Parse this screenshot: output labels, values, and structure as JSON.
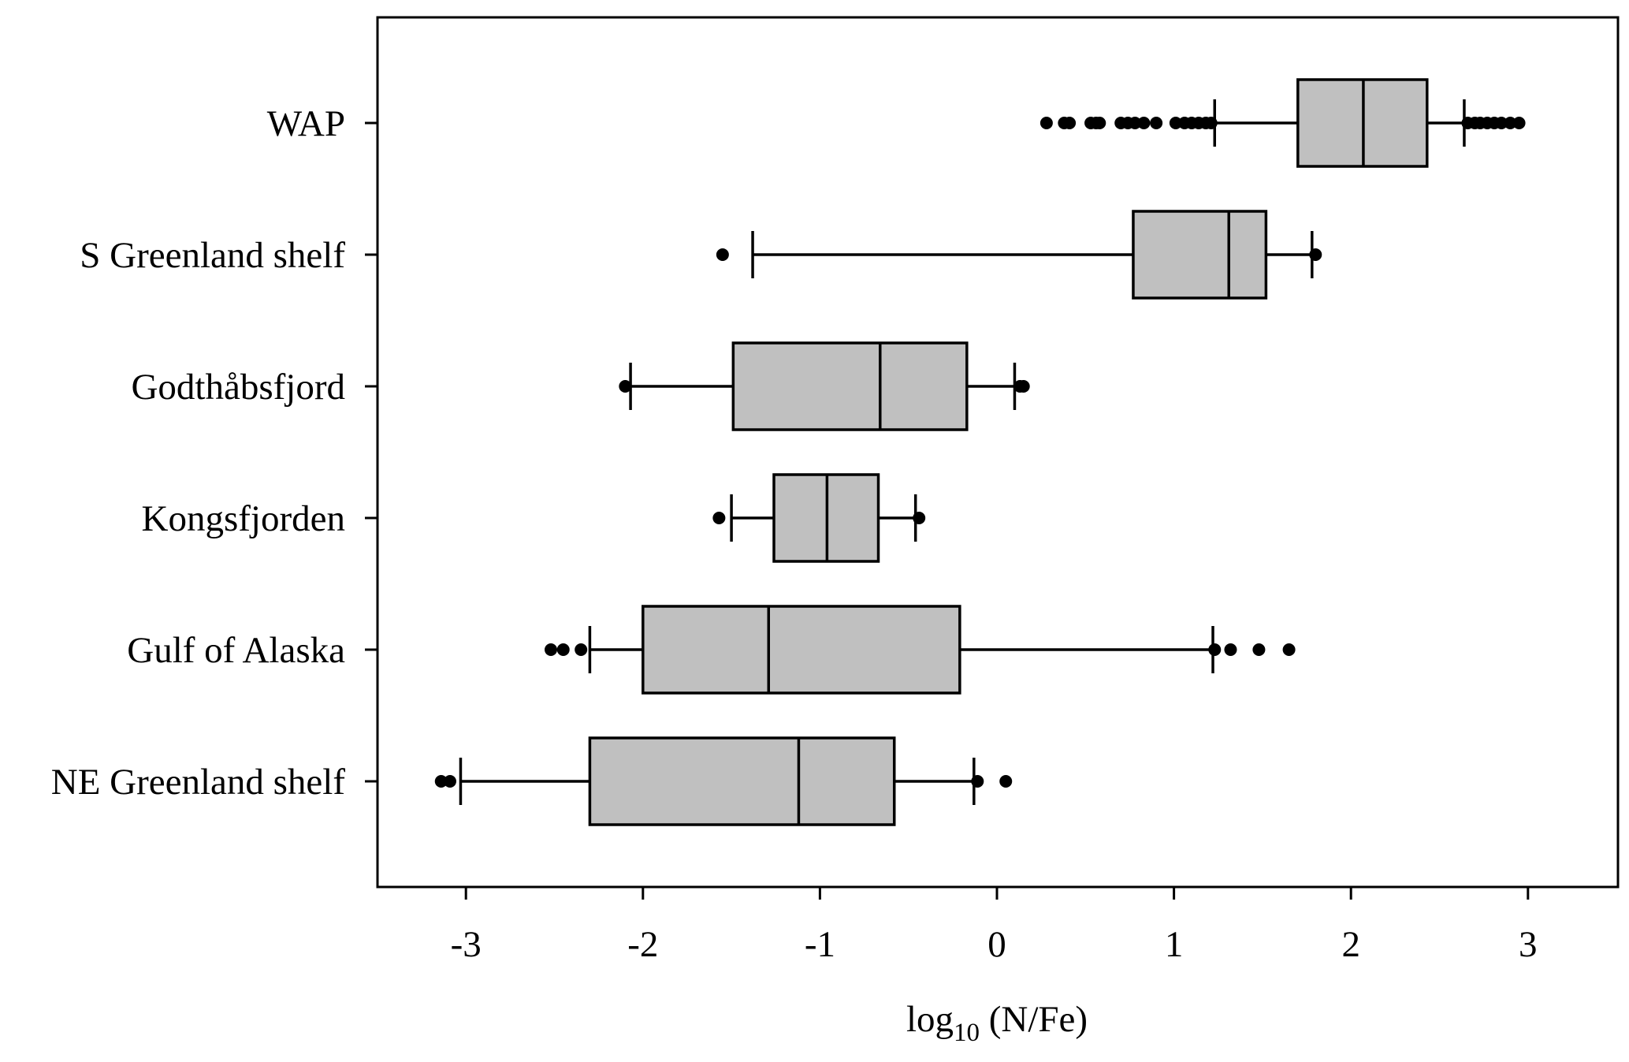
{
  "chart_data": {
    "type": "boxplot",
    "orientation": "horizontal",
    "xlabel": {
      "main": "log",
      "sub": "10",
      "rest": " (N/Fe)"
    },
    "xlim": [
      -3.5,
      3.5
    ],
    "xticks": [
      -3,
      -2,
      -1,
      0,
      1,
      2,
      3
    ],
    "xtick_labels": [
      "-3",
      "-2",
      "-1",
      "0",
      "1",
      "2",
      "3"
    ],
    "grid": false,
    "box_color": "#c0c0c0",
    "line_color": "#000000",
    "categories": [
      "WAP",
      "S Greenland shelf",
      "Godthåbsfjord",
      "Kongsfjorden",
      "Gulf of Alaska",
      "NE Greenland shelf"
    ],
    "boxes": [
      {
        "category": "WAP",
        "whisker_low": 1.23,
        "q1": 1.7,
        "median": 2.07,
        "q3": 2.43,
        "whisker_high": 2.64,
        "outliers": [
          0.28,
          0.38,
          0.41,
          0.53,
          0.56,
          0.58,
          0.7,
          0.74,
          0.78,
          0.83,
          0.9,
          1.01,
          1.06,
          1.1,
          1.14,
          1.18,
          1.21,
          2.66,
          2.7,
          2.73,
          2.77,
          2.81,
          2.85,
          2.9,
          2.95
        ]
      },
      {
        "category": "S Greenland shelf",
        "whisker_low": -1.38,
        "q1": 0.77,
        "median": 1.31,
        "q3": 1.52,
        "whisker_high": 1.78,
        "outliers": [
          -1.55,
          1.8
        ]
      },
      {
        "category": "Godthåbsfjord",
        "whisker_low": -2.07,
        "q1": -1.49,
        "median": -0.66,
        "q3": -0.17,
        "whisker_high": 0.1,
        "outliers": [
          -2.1,
          0.13,
          0.15
        ]
      },
      {
        "category": "Kongsfjorden",
        "whisker_low": -1.5,
        "q1": -1.26,
        "median": -0.96,
        "q3": -0.67,
        "whisker_high": -0.46,
        "outliers": [
          -1.57,
          -0.44
        ]
      },
      {
        "category": "Gulf of Alaska",
        "whisker_low": -2.3,
        "q1": -2.0,
        "median": -1.29,
        "q3": -0.21,
        "whisker_high": 1.22,
        "outliers": [
          -2.52,
          -2.45,
          -2.35,
          1.23,
          1.32,
          1.48,
          1.65
        ]
      },
      {
        "category": "NE Greenland shelf",
        "whisker_low": -3.03,
        "q1": -2.3,
        "median": -1.12,
        "q3": -0.58,
        "whisker_high": -0.13,
        "outliers": [
          -3.14,
          -3.09,
          -0.11,
          0.05
        ]
      }
    ]
  }
}
